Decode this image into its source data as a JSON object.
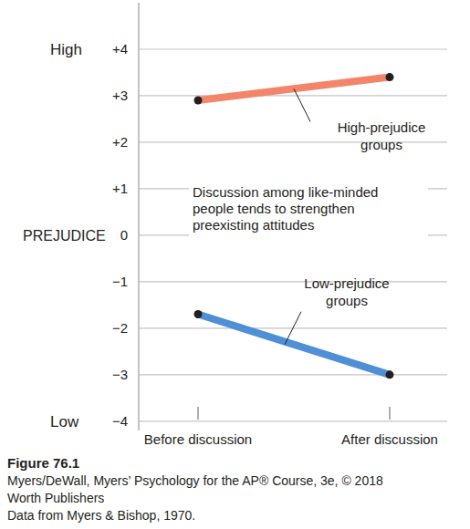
{
  "chart_data": {
    "type": "line",
    "y_label": "PREJUDICE",
    "y_end_labels": {
      "high": "High",
      "low": "Low"
    },
    "categories": [
      "Before discussion",
      "After discussion"
    ],
    "series": [
      {
        "name": "High-prejudice groups",
        "color": "#f2856a",
        "values": [
          2.9,
          3.4
        ],
        "marker": "circle"
      },
      {
        "name": "Low-prejudice groups",
        "color": "#4f8fd6",
        "values": [
          -1.7,
          -3.0
        ],
        "marker": "circle"
      }
    ],
    "ylim": [
      -4.2,
      5
    ],
    "yticks": [
      {
        "value": 4,
        "label": "+4"
      },
      {
        "value": 3,
        "label": "+3"
      },
      {
        "value": 2,
        "label": "+2"
      },
      {
        "value": 1,
        "label": "+1"
      },
      0,
      {
        "value": -1,
        "label": "−1"
      },
      {
        "value": -2,
        "label": "−2"
      },
      {
        "value": -3,
        "label": "−3"
      },
      {
        "value": -4,
        "label": "−4"
      }
    ],
    "grid": true,
    "annotation": [
      "Discussion among like-minded",
      "people tends to strengthen",
      "preexisting attitudes"
    ],
    "caption": [
      "Figure 76.1",
      "Myers/DeWall, Myers’ Psychology for the AP® Course, 3e, © 2018",
      "Worth Publishers",
      "Data from Myers & Bishop, 1970."
    ]
  }
}
